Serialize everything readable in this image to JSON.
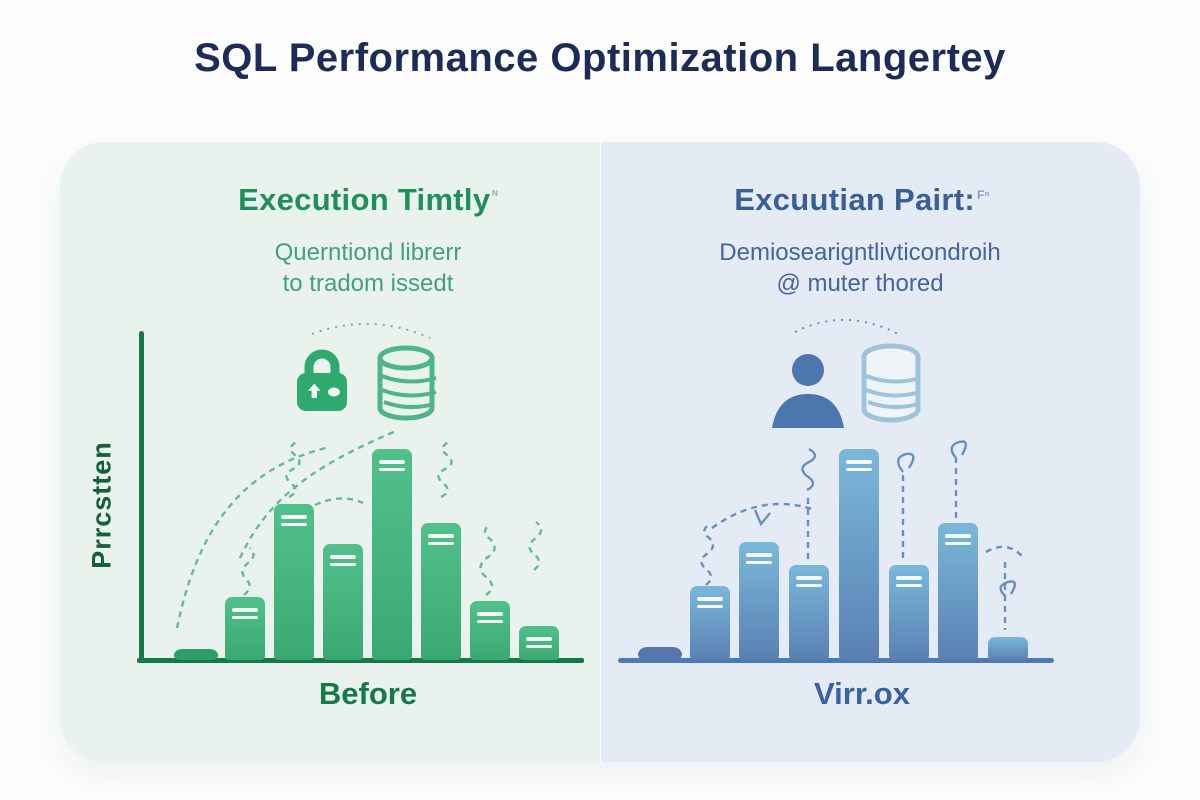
{
  "page": {
    "title": "SQL Performance Optimization Langertey"
  },
  "colors": {
    "title": "#1d2b57",
    "card_left_bg": "#e9f2ed",
    "card_right_bg": "#e4ebf4",
    "green_heading": "#1f8f5b",
    "green_subtitle": "#44a07a",
    "green_axis": "#15794a",
    "green_bar_top": "#52c08b",
    "green_bar_bottom": "#3aa971",
    "blue_heading": "#3a5f95",
    "blue_subtitle": "#45649c",
    "blue_axis": "#4d7ab2",
    "blue_bar_top": "#7ab8da",
    "blue_bar_bottom": "#5a80b3"
  },
  "panels": {
    "before": {
      "heading": "Execution Timtly",
      "heading_sup": "ᴺ",
      "subtitle_lines": [
        "Querntiond librerr",
        "to tradom issedt"
      ],
      "y_axis_label": "Prrcstten",
      "x_axis_label": "Before",
      "icons": [
        "lock-icon",
        "database-icon"
      ]
    },
    "after": {
      "heading": "Excuutian Pairt:",
      "heading_sup": "Fⁿ",
      "subtitle_lines": [
        "Demiosearigntlivticondroih",
        "@ muter thored"
      ],
      "x_axis_label": "Virr.ox",
      "icons": [
        "person-icon",
        "database-icon"
      ]
    }
  },
  "chart_data": [
    {
      "type": "bar",
      "title": "Execution Timtly",
      "subtitle": "Querntiond librerr to tradom issedt",
      "xlabel": "Before",
      "ylabel": "Prrcstten",
      "categories": [
        "",
        "",
        "",
        "",
        "",
        "",
        "",
        ""
      ],
      "values": [
        5,
        30,
        74,
        55,
        100,
        65,
        28,
        16
      ],
      "value_units": "relative-height-% (no tick labels shown)",
      "ylim": [
        0,
        100
      ],
      "grid": false,
      "legend": false,
      "notes": "hand-drawn style green bars with white double stripes near tops, dashed arcs and squiggle doodles above bars"
    },
    {
      "type": "bar",
      "title": "Excuutian Pairt:",
      "subtitle": "Demiosearigntlivticondroih @ muter thored",
      "xlabel": "Virr.ox",
      "ylabel": "",
      "categories": [
        "",
        "",
        "",
        "",
        "",
        "",
        "",
        ""
      ],
      "values": [
        6,
        35,
        56,
        45,
        100,
        45,
        65,
        11
      ],
      "value_units": "relative-height-% (no tick labels shown)",
      "ylim": [
        0,
        100
      ],
      "grid": false,
      "legend": false,
      "notes": "blue gradient bars on horizontal baseline only, dashed arrows, coils and loop doodles above bars"
    }
  ]
}
